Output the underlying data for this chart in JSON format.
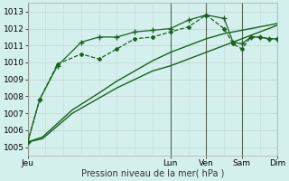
{
  "title": "",
  "xlabel": "Pression niveau de la mer( hPa )",
  "bg_color": "#d4f0ed",
  "grid_color": "#c8dcd8",
  "line_color": "#1a6020",
  "ylim": [
    1004.5,
    1013.5
  ],
  "xlim": [
    0,
    168
  ],
  "yticks": [
    1005,
    1006,
    1007,
    1008,
    1009,
    1010,
    1011,
    1012,
    1013
  ],
  "xtick_positions": [
    0,
    96,
    120,
    144,
    168
  ],
  "xtick_labels": [
    "Jeu",
    "Lun",
    "Ven",
    "Sam",
    "Dim"
  ],
  "vlines": [
    96,
    120,
    144,
    168
  ],
  "series": [
    {
      "x": [
        0,
        10,
        30,
        48,
        60,
        72,
        84,
        96,
        108,
        120,
        132,
        144,
        156,
        168
      ],
      "y": [
        1005.3,
        1005.5,
        1007.0,
        1007.9,
        1008.5,
        1009.0,
        1009.5,
        1009.8,
        1010.2,
        1010.6,
        1011.0,
        1011.4,
        1011.8,
        1012.2
      ],
      "style": "solid",
      "marker": null,
      "markersize": 0,
      "linewidth": 1.0
    },
    {
      "x": [
        0,
        10,
        30,
        48,
        60,
        72,
        84,
        96,
        108,
        120,
        132,
        144,
        156,
        168
      ],
      "y": [
        1005.3,
        1005.6,
        1007.2,
        1008.2,
        1008.9,
        1009.5,
        1010.1,
        1010.6,
        1011.0,
        1011.4,
        1011.7,
        1011.9,
        1012.1,
        1012.3
      ],
      "style": "solid",
      "marker": null,
      "markersize": 0,
      "linewidth": 1.0
    },
    {
      "x": [
        0,
        8,
        20,
        36,
        48,
        60,
        72,
        84,
        96,
        108,
        120,
        132,
        138,
        144,
        150,
        156,
        162,
        168
      ],
      "y": [
        1005.3,
        1007.8,
        1009.9,
        1010.5,
        1010.2,
        1010.8,
        1011.4,
        1011.5,
        1011.8,
        1012.1,
        1012.8,
        1012.0,
        1011.1,
        1010.8,
        1011.5,
        1011.5,
        1011.4,
        1011.4
      ],
      "style": "dashed",
      "marker": "D",
      "markersize": 2.0,
      "linewidth": 0.9
    },
    {
      "x": [
        0,
        8,
        20,
        36,
        48,
        60,
        72,
        84,
        96,
        108,
        120,
        132,
        138,
        144,
        150,
        156,
        162,
        168
      ],
      "y": [
        1005.3,
        1007.8,
        1009.8,
        1011.2,
        1011.5,
        1011.5,
        1011.8,
        1011.9,
        1012.0,
        1012.5,
        1012.8,
        1012.6,
        1011.2,
        1011.1,
        1011.5,
        1011.5,
        1011.4,
        1011.4
      ],
      "style": "solid",
      "marker": "+",
      "markersize": 4,
      "linewidth": 0.9
    }
  ]
}
